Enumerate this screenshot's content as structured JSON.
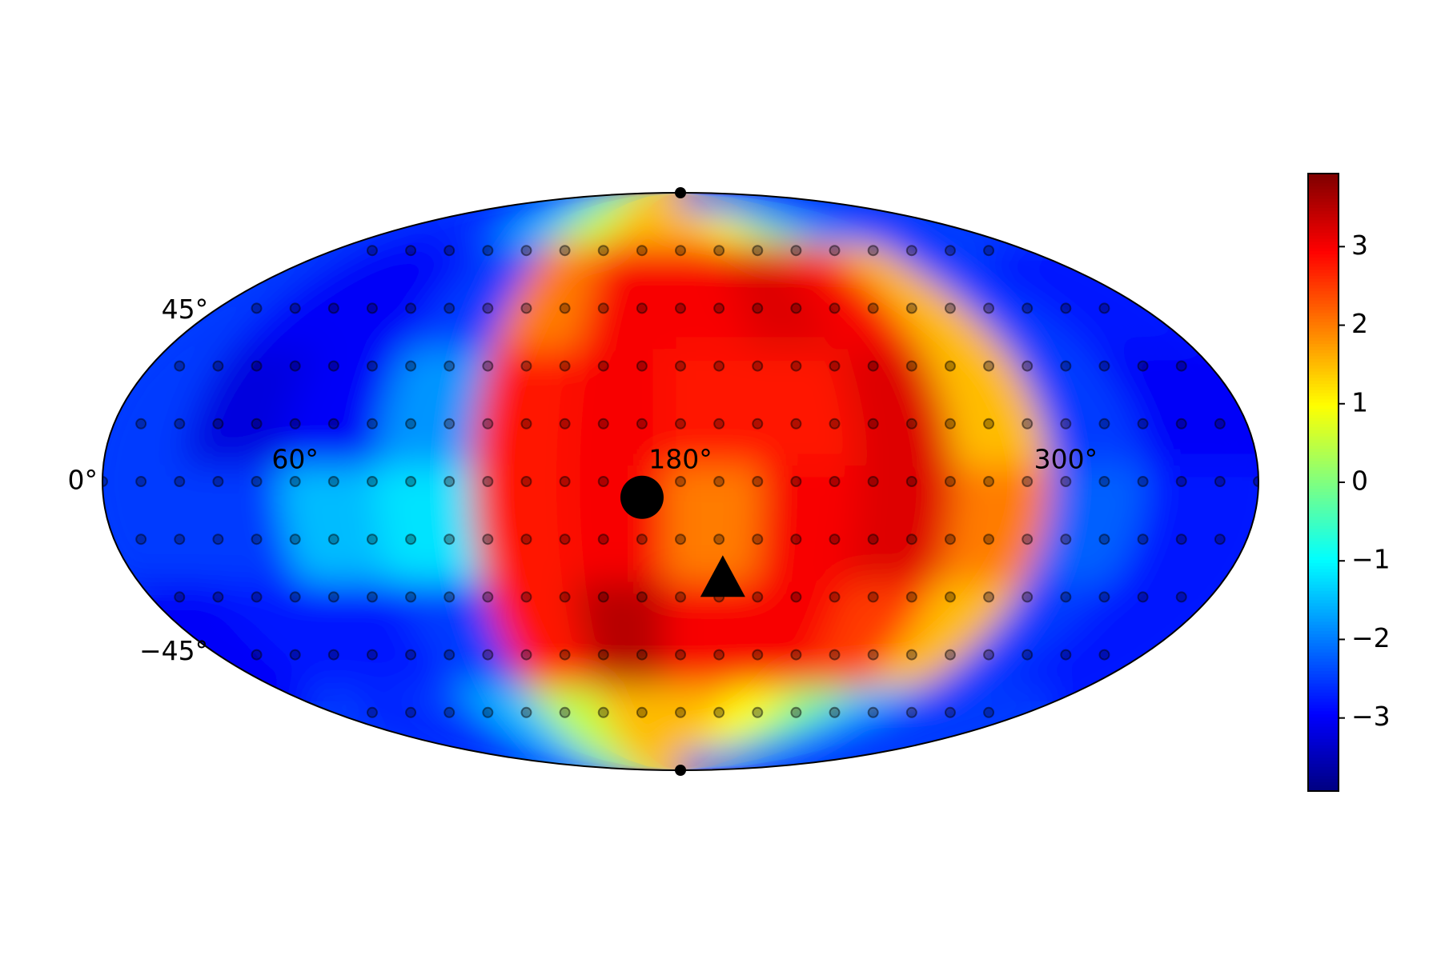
{
  "chart_data": {
    "type": "mollweide-heatmap",
    "colormap": "jet",
    "x": [
      15,
      45,
      75,
      105,
      135,
      165,
      195,
      225,
      255,
      285,
      315,
      345
    ],
    "y": [
      75,
      45,
      15,
      -15,
      -45,
      -75
    ],
    "z": [
      [
        -2.5,
        -2.8,
        -2.5,
        -1.5,
        0.5,
        1.5,
        1.5,
        1,
        0,
        -1.5,
        -2.5,
        -2.5
      ],
      [
        -2.5,
        -3,
        -3,
        -2.5,
        2,
        3,
        3,
        3.2,
        3,
        1.5,
        -2.5,
        -2.8
      ],
      [
        -2.5,
        -3.2,
        -3,
        -1.8,
        2.8,
        3,
        2.8,
        2.8,
        3.2,
        1.5,
        -2.5,
        -3
      ],
      [
        -2.5,
        -2.5,
        -1.5,
        -1.2,
        2.8,
        3,
        2,
        3,
        3.2,
        2,
        -2.2,
        -2.8
      ],
      [
        -3,
        -2.8,
        -2.8,
        -2.5,
        2.8,
        3.5,
        3,
        3,
        2.5,
        1.5,
        -2.5,
        -2.8
      ],
      [
        -2.5,
        -2.8,
        -2.5,
        -1.5,
        0.5,
        1.5,
        1.5,
        1,
        0,
        -1.5,
        -2.5,
        -2.5
      ]
    ],
    "xlim": [
      0,
      360
    ],
    "ylim": [
      -90,
      90
    ],
    "xticks": [
      {
        "value": 0,
        "label": "0°"
      },
      {
        "value": 60,
        "label": "60°"
      },
      {
        "value": 180,
        "label": "180°"
      },
      {
        "value": 300,
        "label": "300°"
      }
    ],
    "yticks": [
      {
        "value": 45,
        "label": "45°"
      },
      {
        "value": -45,
        "label": "−45°"
      }
    ],
    "clim": [
      -3.93,
      3.93
    ],
    "cticks": [
      {
        "value": -3,
        "label": "−3"
      },
      {
        "value": -2,
        "label": "−2"
      },
      {
        "value": -1,
        "label": "−1"
      },
      0,
      1,
      2,
      3
    ],
    "markers": [
      {
        "shape": "circle",
        "color": "#000000",
        "lon": 168,
        "lat": -4
      },
      {
        "shape": "triangle",
        "color": "#000000",
        "lon": 194,
        "lat": -25
      }
    ]
  }
}
